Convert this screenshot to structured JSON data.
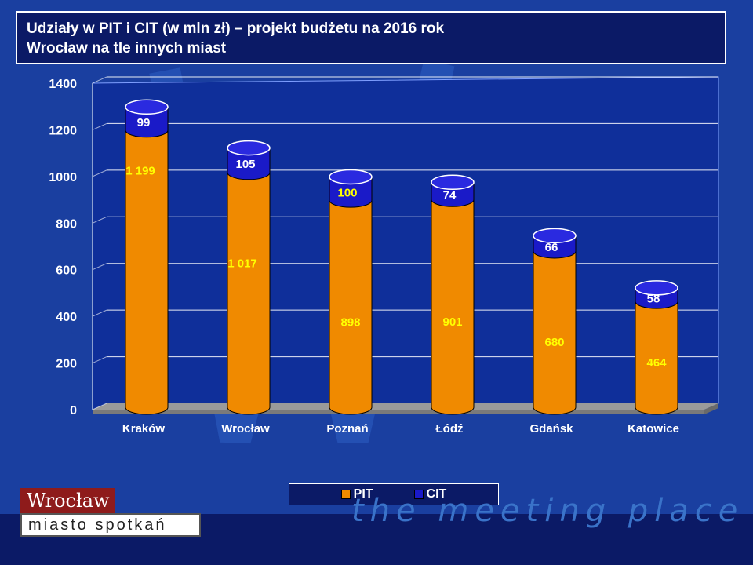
{
  "slide": {
    "title_line1": "Udziały w PIT i CIT (w mln zł) –  projekt budżetu na 2016 rok",
    "title_line2": "Wrocław na tle innych miast",
    "logo_name": "Wrocław",
    "logo_subtitle": "miasto spotkań",
    "tagline": "the meeting place",
    "colors": {
      "background": "#1a3fa0",
      "title_bg": "#0b1a66",
      "pit": "#f08a00",
      "cit": "#1a1ac8",
      "label_text": "#ffff00"
    }
  },
  "chart_data": {
    "type": "bar",
    "stacked": true,
    "categories": [
      "Kraków",
      "Wrocław",
      "Poznań",
      "Łódź",
      "Gdańsk",
      "Katowice"
    ],
    "series": [
      {
        "name": "PIT",
        "values": [
          1199,
          1017,
          898,
          901,
          680,
          464
        ],
        "labels": [
          "1 199",
          "1 017",
          "898",
          "901",
          "680",
          "464"
        ],
        "color": "#f08a00"
      },
      {
        "name": "CIT",
        "values": [
          99,
          105,
          100,
          74,
          66,
          58
        ],
        "labels": [
          "99",
          "105",
          "100",
          "74",
          "66",
          "58"
        ],
        "color": "#1a1ac8"
      }
    ],
    "yticks": [
      "0",
      "200",
      "400",
      "600",
      "800",
      "1000",
      "1200",
      "1400"
    ],
    "ylim": [
      0,
      1400
    ],
    "grid": true,
    "legend_position": "bottom"
  }
}
